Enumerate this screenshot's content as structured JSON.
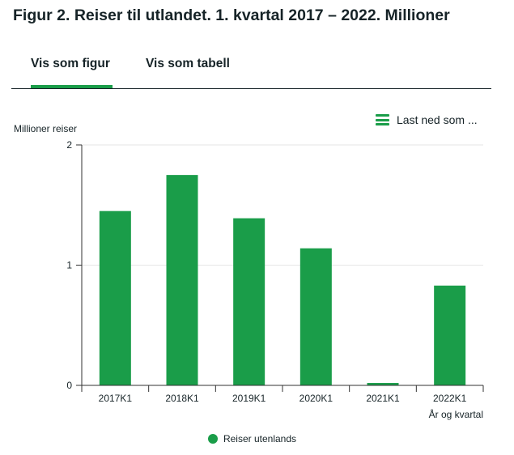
{
  "page": {
    "title": "Figur 2. Reiser til utlandet. 1. kvartal 2017 – 2022. Millioner"
  },
  "tabs": [
    {
      "label": "Vis som figur",
      "active": true
    },
    {
      "label": "Vis som tabell",
      "active": false
    }
  ],
  "download": {
    "label": "Last ned som ...",
    "icon": "menu-icon"
  },
  "colors": {
    "accent": "#1a9d49",
    "text": "#162327",
    "grid": "#e6e6e6",
    "axis": "#333333"
  },
  "chart_data": {
    "type": "bar",
    "title": "Figur 2. Reiser til utlandet. 1. kvartal 2017 – 2022. Millioner",
    "ylabel": "Millioner reiser",
    "xlabel": "År og kvartal",
    "categories": [
      "2017K1",
      "2018K1",
      "2019K1",
      "2020K1",
      "2021K1",
      "2022K1"
    ],
    "series": [
      {
        "name": "Reiser utenlands",
        "color": "#1a9d49",
        "values": [
          1.45,
          1.75,
          1.39,
          1.14,
          0.02,
          0.83
        ]
      }
    ],
    "ylim": [
      0,
      2
    ],
    "yticks": [
      "0",
      "1",
      "2"
    ],
    "grid": true,
    "legend": "bottom-center"
  }
}
